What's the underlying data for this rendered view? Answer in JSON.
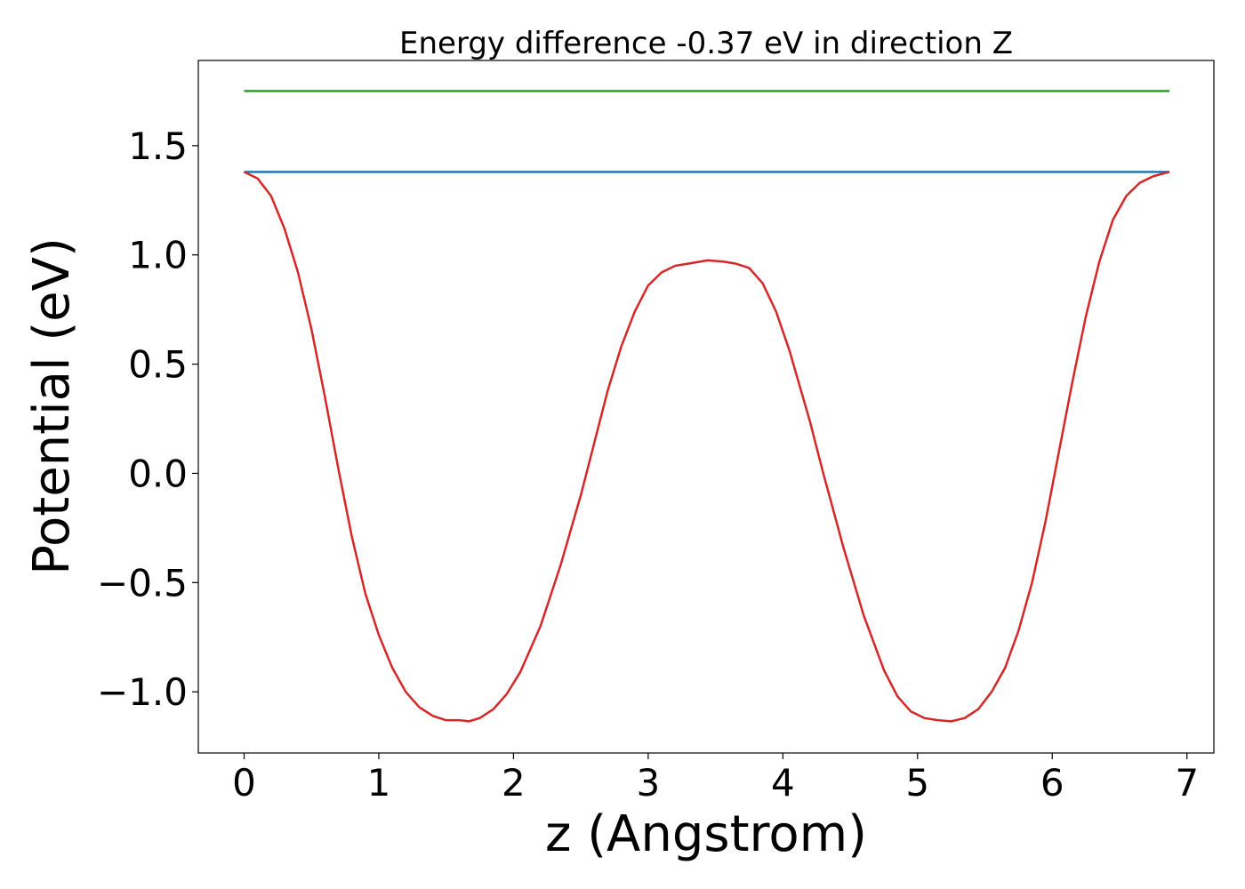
{
  "chart_data": {
    "type": "line",
    "title": "Energy difference -0.37 eV in direction Z",
    "xlabel": "z (Angstrom)",
    "ylabel": "Potential (eV)",
    "xlim": [
      -0.34,
      7.2
    ],
    "ylim": [
      -1.28,
      1.89
    ],
    "grid": false,
    "xticks": [
      0,
      1,
      2,
      3,
      4,
      5,
      6,
      7
    ],
    "xtick_labels": [
      "0",
      "1",
      "2",
      "3",
      "4",
      "5",
      "6",
      "7"
    ],
    "yticks": [
      -1.0,
      -0.5,
      0.0,
      0.5,
      1.0,
      1.5
    ],
    "ytick_labels": [
      "−1.0",
      "−0.5",
      "0.0",
      "0.5",
      "1.0",
      "1.5"
    ],
    "series": [
      {
        "color": "#2ca02c",
        "x": [
          0,
          6.87
        ],
        "y": [
          1.75,
          1.75
        ]
      },
      {
        "color": "#1f77b4",
        "x": [
          0,
          6.87
        ],
        "y": [
          1.38,
          1.38
        ]
      },
      {
        "color": "#d62728",
        "x": [
          0,
          0.1,
          0.2,
          0.3,
          0.4,
          0.5,
          0.6,
          0.7,
          0.8,
          0.9,
          1.0,
          1.1,
          1.2,
          1.3,
          1.4,
          1.5,
          1.6,
          1.67,
          1.75,
          1.85,
          1.95,
          2.05,
          2.2,
          2.35,
          2.5,
          2.6,
          2.7,
          2.8,
          2.9,
          3.0,
          3.1,
          3.2,
          3.3,
          3.44,
          3.55,
          3.65,
          3.75,
          3.85,
          3.95,
          4.05,
          4.2,
          4.3,
          4.45,
          4.6,
          4.75,
          4.85,
          4.95,
          5.05,
          5.15,
          5.25,
          5.35,
          5.45,
          5.55,
          5.65,
          5.75,
          5.85,
          5.95,
          6.05,
          6.15,
          6.25,
          6.35,
          6.45,
          6.55,
          6.65,
          6.75,
          6.87
        ],
        "y": [
          1.38,
          1.35,
          1.27,
          1.12,
          0.92,
          0.66,
          0.35,
          0.02,
          -0.29,
          -0.55,
          -0.74,
          -0.89,
          -1.0,
          -1.07,
          -1.11,
          -1.13,
          -1.13,
          -1.135,
          -1.12,
          -1.08,
          -1.01,
          -0.91,
          -0.7,
          -0.42,
          -0.1,
          0.14,
          0.38,
          0.58,
          0.74,
          0.86,
          0.92,
          0.95,
          0.96,
          0.975,
          0.97,
          0.96,
          0.94,
          0.87,
          0.74,
          0.56,
          0.24,
          0.0,
          -0.34,
          -0.65,
          -0.9,
          -1.02,
          -1.09,
          -1.12,
          -1.13,
          -1.135,
          -1.12,
          -1.08,
          -1.0,
          -0.89,
          -0.72,
          -0.5,
          -0.22,
          0.1,
          0.42,
          0.72,
          0.97,
          1.16,
          1.27,
          1.33,
          1.36,
          1.38
        ]
      }
    ]
  }
}
